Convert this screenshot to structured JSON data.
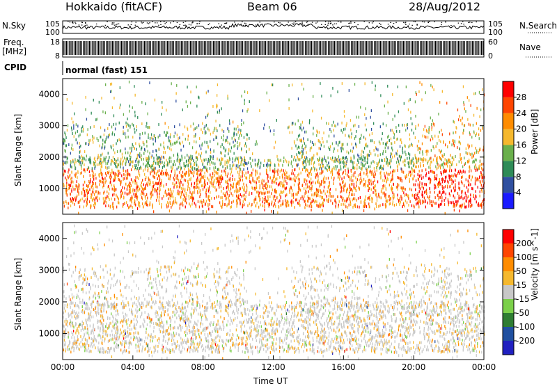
{
  "header": {
    "radar": "Hokkaido (fitACF)",
    "beam": "Beam 06",
    "date": "28/Aug/2012"
  },
  "left_labels": {
    "nsky": "N.Sky",
    "freq_top": "Freq.",
    "freq_unit": "[MHz]",
    "cpid": "CPID"
  },
  "right_labels": {
    "nsearch": "N.Search",
    "nave": "Nave"
  },
  "cpid_text": "normal (fast) 151",
  "x_axis": {
    "label": "Time UT",
    "ticks": [
      "00:00",
      "04:00",
      "08:00",
      "12:00",
      "16:00",
      "20:00",
      "00:00"
    ]
  },
  "chart_data": [
    {
      "type": "line",
      "panel": "noise",
      "left_axis": {
        "label": "N.Sky",
        "ticks": [
          "10^5",
          "10^0"
        ]
      },
      "right_axis": {
        "label": "N.Search",
        "ticks": [
          "10^5",
          "10^0"
        ]
      },
      "x": {
        "range_hours": [
          0,
          24
        ]
      }
    },
    {
      "type": "bar",
      "panel": "frequency",
      "left_axis": {
        "label": "Freq. [MHz]",
        "ticks": [
          18,
          8
        ],
        "ylim": [
          8,
          18
        ]
      },
      "right_axis": {
        "label": "Nave",
        "ticks": [
          60,
          0
        ],
        "ylim": [
          0,
          60
        ]
      }
    },
    {
      "type": "heatmap",
      "panel": "power",
      "ylabel": "Slant Range [km]",
      "xlabel": "Time UT",
      "yticks": [
        1000,
        2000,
        3000,
        4000
      ],
      "ylim": [
        180,
        4500
      ],
      "xlim_hours": [
        0,
        24
      ],
      "colorbar": {
        "label": "Power [dB]",
        "ticks": [
          4,
          8,
          12,
          16,
          20,
          24,
          28
        ],
        "colors": [
          "#1a1aff",
          "#3050a0",
          "#2e8b57",
          "#6ab04c",
          "#f5b82e",
          "#ff8c00",
          "#ff4500",
          "#ff0000"
        ]
      }
    },
    {
      "type": "heatmap",
      "panel": "velocity",
      "ylabel": "Slant Range [km]",
      "xlabel": "Time UT",
      "yticks": [
        1000,
        2000,
        3000,
        4000
      ],
      "ylim": [
        180,
        4500
      ],
      "xlim_hours": [
        0,
        24
      ],
      "colorbar": {
        "label": "Velocity [m s^-1]",
        "ticks": [
          200,
          100,
          50,
          15,
          -15,
          -50,
          -100,
          -200
        ],
        "colors": [
          "#2020c0",
          "#2050a0",
          "#2e7d32",
          "#7bd04a",
          "#c8c8c8",
          "#f5b82e",
          "#ff8c00",
          "#ff4500",
          "#ff0000"
        ]
      }
    }
  ]
}
